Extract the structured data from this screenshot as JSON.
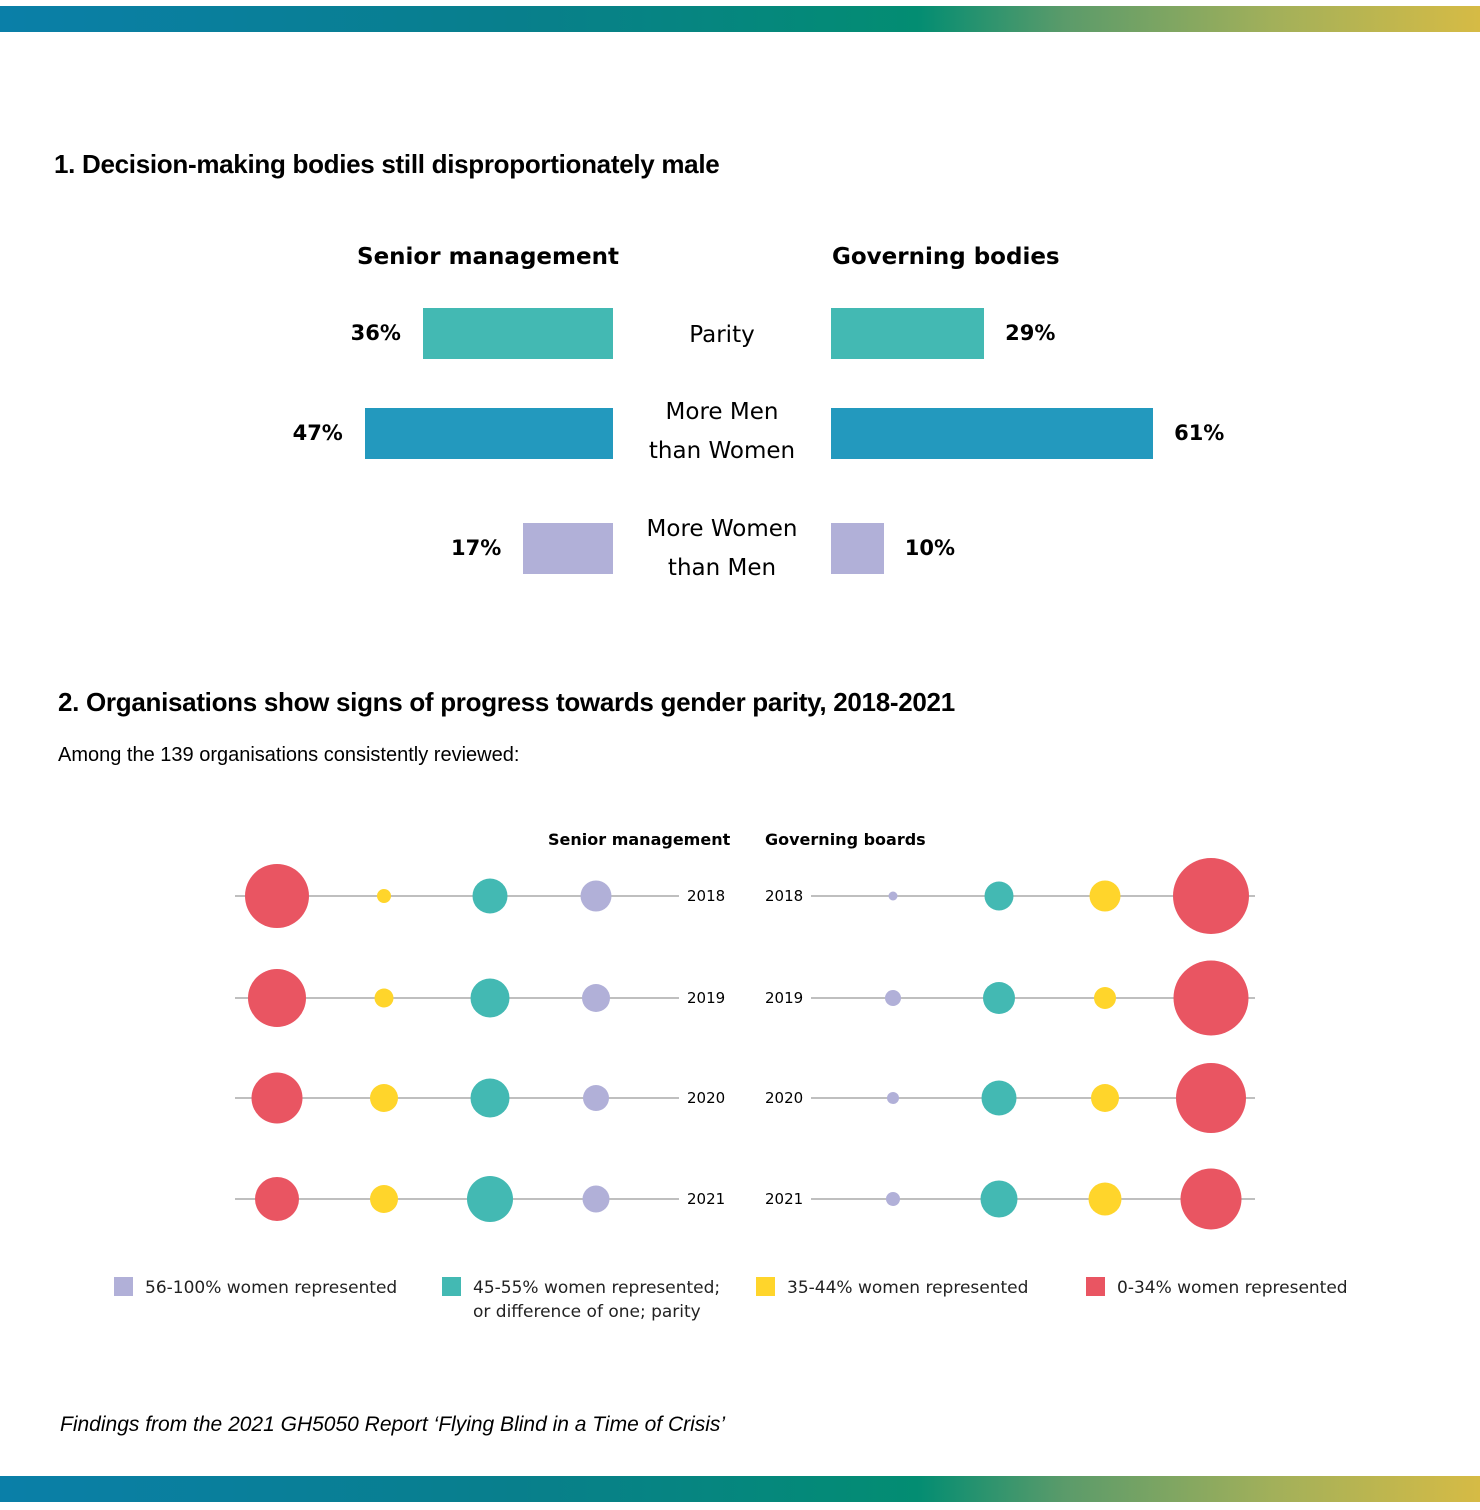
{
  "colors": {
    "parity": "#43b9b3",
    "more_men": "#2399be",
    "more_women": "#b1b0d8",
    "range_56_100": "#b1b0d8",
    "range_45_55": "#43b9b3",
    "range_35_44": "#ffd52b",
    "range_0_34": "#e95562",
    "line": "#aaaaaa"
  },
  "section1": {
    "title": "1. Decision-making bodies still disproportionately male"
  },
  "section2": {
    "title": "2. Organisations show signs of progress towards gender parity, 2018-2021",
    "subtitle": "Among the 139 organisations consistently reviewed:"
  },
  "footnote": "Findings from the 2021 GH5050 Report ‘Flying Blind in a Time of Crisis’",
  "chart_data": [
    {
      "type": "bar",
      "orientation": "horizontal-diverging",
      "title": "1. Decision-making bodies still disproportionately male",
      "categories": [
        "Parity",
        "More Men than Women",
        "More Women than Men"
      ],
      "category_lines": [
        [
          "Parity"
        ],
        [
          "More Men",
          "than Women"
        ],
        [
          "More Women",
          "than Men"
        ]
      ],
      "series": [
        {
          "name": "Senior management",
          "values": [
            36,
            47,
            17
          ],
          "labels": [
            "36%",
            "47%",
            "17%"
          ],
          "side": "left"
        },
        {
          "name": "Governing bodies",
          "values": [
            29,
            61,
            10
          ],
          "labels": [
            "29%",
            "61%",
            "10%"
          ],
          "side": "right"
        }
      ],
      "unit": "%",
      "xlim": [
        0,
        100
      ],
      "grid": false,
      "legend": "none"
    },
    {
      "type": "scatter",
      "subtype": "bubble-rows",
      "title": "2. Organisations show signs of progress towards gender parity, 2018-2021",
      "subtitle": "Among the 139 organisations consistently reviewed:",
      "years": [
        "2018",
        "2019",
        "2020",
        "2021"
      ],
      "note": "bubble size = relative number of organisations (estimated from bubble areas)",
      "panels": [
        {
          "name": "Senior management",
          "order": [
            "0-34",
            "35-44",
            "45-55",
            "56-100"
          ],
          "rows": [
            {
              "year": "2018",
              "sizes": {
                "0-34": 64,
                "35-44": 14,
                "45-55": 35,
                "56-100": 31
              }
            },
            {
              "year": "2019",
              "sizes": {
                "0-34": 58,
                "35-44": 19,
                "45-55": 39,
                "56-100": 28
              }
            },
            {
              "year": "2020",
              "sizes": {
                "0-34": 51,
                "35-44": 28,
                "45-55": 39,
                "56-100": 26
              }
            },
            {
              "year": "2021",
              "sizes": {
                "0-34": 44,
                "35-44": 28,
                "45-55": 46,
                "56-100": 27
              }
            }
          ]
        },
        {
          "name": "Governing boards",
          "order": [
            "56-100",
            "45-55",
            "35-44",
            "0-34"
          ],
          "rows": [
            {
              "year": "2018",
              "sizes": {
                "56-100": 9,
                "45-55": 29,
                "35-44": 31,
                "0-34": 76
              }
            },
            {
              "year": "2019",
              "sizes": {
                "56-100": 16,
                "45-55": 32,
                "35-44": 22,
                "0-34": 75
              }
            },
            {
              "year": "2020",
              "sizes": {
                "56-100": 12,
                "45-55": 35,
                "35-44": 28,
                "0-34": 70
              }
            },
            {
              "year": "2021",
              "sizes": {
                "56-100": 14,
                "45-55": 37,
                "35-44": 33,
                "0-34": 61
              }
            }
          ]
        }
      ],
      "legend": {
        "placement": "bottom",
        "items": [
          {
            "key": "56-100",
            "label": "56-100% women represented",
            "lines": [
              "56-100% women represented"
            ]
          },
          {
            "key": "45-55",
            "label": "45-55% women represented; or difference of one; parity",
            "lines": [
              "45-55% women represented;",
              "or difference of one; parity"
            ]
          },
          {
            "key": "35-44",
            "label": "35-44% women represented",
            "lines": [
              "35-44% women represented"
            ]
          },
          {
            "key": "0-34",
            "label": "0-34% women represented",
            "lines": [
              "0-34% women represented"
            ]
          }
        ]
      }
    }
  ]
}
